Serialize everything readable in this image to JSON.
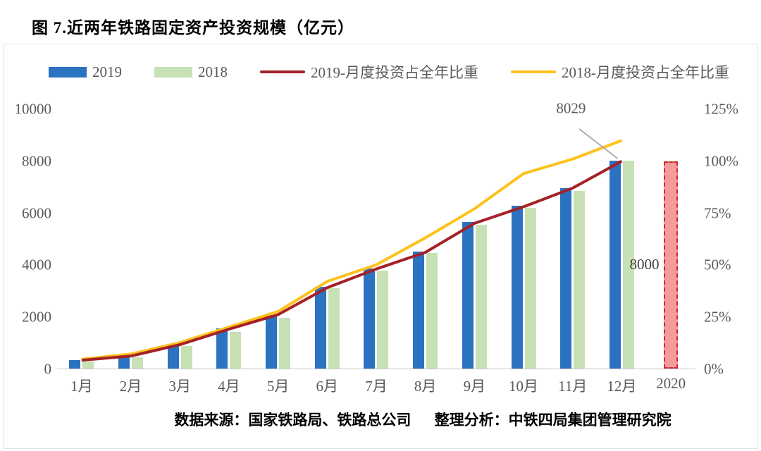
{
  "header": {
    "title": "图 7.近两年铁路固定资产投资规模（亿元）"
  },
  "footer": {
    "source_label": "数据来源：国家铁路局、铁路总公司",
    "analysis_label": "整理分析：中铁四局集团管理研究院"
  },
  "colors": {
    "bar_2019": "#2b72c0",
    "bar_2018": "#c7e1b5",
    "line_2019": "#a42127",
    "line_2018": "#fec21e",
    "bar_2020_fill": "#f59b9d",
    "bar_2020_border": "#ce2a2d",
    "axis_text": "#595959",
    "leader_line": "#ababab"
  },
  "chart_data": {
    "type": "combo_bar_line",
    "title": "图 7.近两年铁路固定资产投资规模（亿元）",
    "categories": [
      "1月",
      "2月",
      "3月",
      "4月",
      "5月",
      "6月",
      "7月",
      "8月",
      "9月",
      "10月",
      "11月",
      "12月",
      "2020"
    ],
    "bar_series": [
      {
        "name": "2019",
        "color": "#2b72c0",
        "values": [
          330,
          480,
          930,
          1550,
          2060,
          3150,
          3860,
          4520,
          5650,
          6270,
          6950,
          8029
        ]
      },
      {
        "name": "2018",
        "color": "#c7e1b5",
        "values": [
          260,
          430,
          880,
          1400,
          1970,
          3100,
          3770,
          4470,
          5540,
          6190,
          6860,
          8028
        ]
      }
    ],
    "line_series": [
      {
        "name": "2019-月度投资占全年比重",
        "color": "#a42127",
        "unit": "%",
        "values": [
          4,
          6,
          11.5,
          19,
          26,
          39,
          48,
          56,
          70,
          78,
          87,
          100
        ]
      },
      {
        "name": "2018-月度投资占全年比重",
        "color": "#fec21e",
        "unit": "%",
        "values": [
          4.5,
          7,
          12.5,
          20,
          27.5,
          42,
          50,
          63,
          77,
          94,
          101,
          110
        ]
      }
    ],
    "plan_bar_2020": {
      "category": "2020",
      "value": 8000,
      "label": "8000",
      "style": "dashed-red"
    },
    "annotation": {
      "text": "8029",
      "target": "12月 2019 柱顶"
    },
    "left_axis": {
      "ticks": [
        0,
        2000,
        4000,
        6000,
        8000,
        10000
      ],
      "max": 10000
    },
    "right_axis": {
      "ticks": [
        "0%",
        "25%",
        "50%",
        "75%",
        "100%",
        "125%"
      ],
      "max_pct": 125
    },
    "legend_position": "top",
    "grid": "off"
  }
}
